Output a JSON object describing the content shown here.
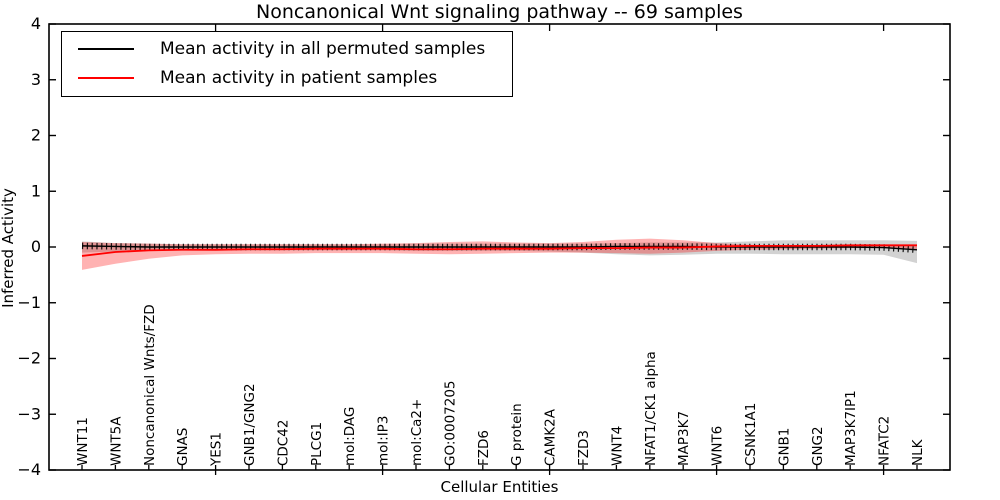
{
  "figure": {
    "title": "Noncanonical Wnt signaling pathway -- 69 samples",
    "xlabel": "Cellular Entities",
    "ylabel": "Inferred Activity",
    "background_color": "#ffffff",
    "axis_color": "#000000"
  },
  "legend": {
    "position": "upper left",
    "items": [
      {
        "label": "Mean activity in all permuted samples",
        "color": "#000000"
      },
      {
        "label": "Mean activity in patient samples",
        "color": "#ff0000"
      }
    ]
  },
  "chart_data": {
    "type": "line",
    "title": "Noncanonical Wnt signaling pathway -- 69 samples",
    "xlabel": "Cellular Entities",
    "ylabel": "Inferred Activity",
    "ylim": [
      -4,
      4
    ],
    "grid": false,
    "legend_position": "upper left",
    "ytick_labels": [
      "4",
      "3",
      "2",
      "1",
      "0",
      "−1",
      "−2",
      "−3",
      "−4"
    ],
    "major_xtick_categories": [
      5,
      10,
      15,
      20,
      25
    ],
    "categories": [
      "WNT11",
      "WNT5A",
      "Noncanonical Wnts/FZD",
      "GNAS",
      "YES1",
      "GNB1/GNG2",
      "CDC42",
      "PLCG1",
      "mol:DAG",
      "mol:IP3",
      "mol:Ca2+",
      "GO:0007205",
      "FZD6",
      "G protein",
      "CAMK2A",
      "FZD3",
      "WNT4",
      "NFAT1/CK1 alpha",
      "MAP3K7",
      "WNT6",
      "CSNK1A1",
      "GNB1",
      "GNG2",
      "MAP3K7IP1",
      "NFATC2",
      "NLK"
    ],
    "series": [
      {
        "name": "Mean activity in all permuted samples",
        "color": "#000000",
        "style": "solid line with small vertical tick markers",
        "values": [
          0.02,
          0.01,
          0.0,
          0.0,
          0.0,
          0.0,
          0.0,
          0.0,
          0.0,
          0.0,
          0.0,
          0.0,
          0.0,
          0.0,
          0.0,
          0.0,
          0.01,
          0.01,
          0.01,
          0.0,
          0.0,
          0.0,
          0.0,
          0.0,
          -0.01,
          -0.05
        ]
      },
      {
        "name": "Mean activity in patient samples",
        "color": "#ff0000",
        "style": "solid line",
        "values": [
          -0.16,
          -0.09,
          -0.06,
          -0.05,
          -0.05,
          -0.04,
          -0.04,
          -0.03,
          -0.03,
          -0.03,
          -0.04,
          -0.04,
          -0.03,
          -0.03,
          -0.03,
          -0.02,
          -0.02,
          -0.01,
          -0.01,
          0.01,
          0.02,
          0.02,
          0.02,
          0.03,
          0.03,
          0.03
        ]
      }
    ],
    "bands": [
      {
        "name": "permuted samples std band",
        "color": "rgba(125,125,125,0.35)",
        "upper": [
          0.1,
          0.07,
          0.06,
          0.05,
          0.05,
          0.05,
          0.05,
          0.05,
          0.05,
          0.05,
          0.06,
          0.06,
          0.06,
          0.06,
          0.06,
          0.06,
          0.07,
          0.08,
          0.08,
          0.08,
          0.1,
          0.12,
          0.12,
          0.12,
          0.12,
          0.11
        ],
        "lower": [
          -0.1,
          -0.08,
          -0.07,
          -0.06,
          -0.06,
          -0.06,
          -0.06,
          -0.06,
          -0.06,
          -0.06,
          -0.07,
          -0.07,
          -0.07,
          -0.07,
          -0.08,
          -0.1,
          -0.13,
          -0.15,
          -0.14,
          -0.12,
          -0.12,
          -0.13,
          -0.13,
          -0.13,
          -0.14,
          -0.29
        ]
      },
      {
        "name": "patient samples std band",
        "color": "rgba(255,0,0,0.30)",
        "upper": [
          0.09,
          0.07,
          0.06,
          0.05,
          0.05,
          0.05,
          0.05,
          0.05,
          0.05,
          0.06,
          0.07,
          0.09,
          0.1,
          0.08,
          0.07,
          0.09,
          0.13,
          0.15,
          0.12,
          0.07,
          0.04,
          0.03,
          0.02,
          0.015,
          0.015,
          0.03
        ],
        "lower": [
          -0.41,
          -0.3,
          -0.21,
          -0.15,
          -0.13,
          -0.12,
          -0.12,
          -0.11,
          -0.11,
          -0.11,
          -0.12,
          -0.13,
          -0.12,
          -0.11,
          -0.1,
          -0.1,
          -0.11,
          -0.12,
          -0.1,
          -0.07,
          -0.05,
          -0.04,
          -0.03,
          -0.02,
          -0.02,
          -0.04
        ]
      }
    ]
  }
}
